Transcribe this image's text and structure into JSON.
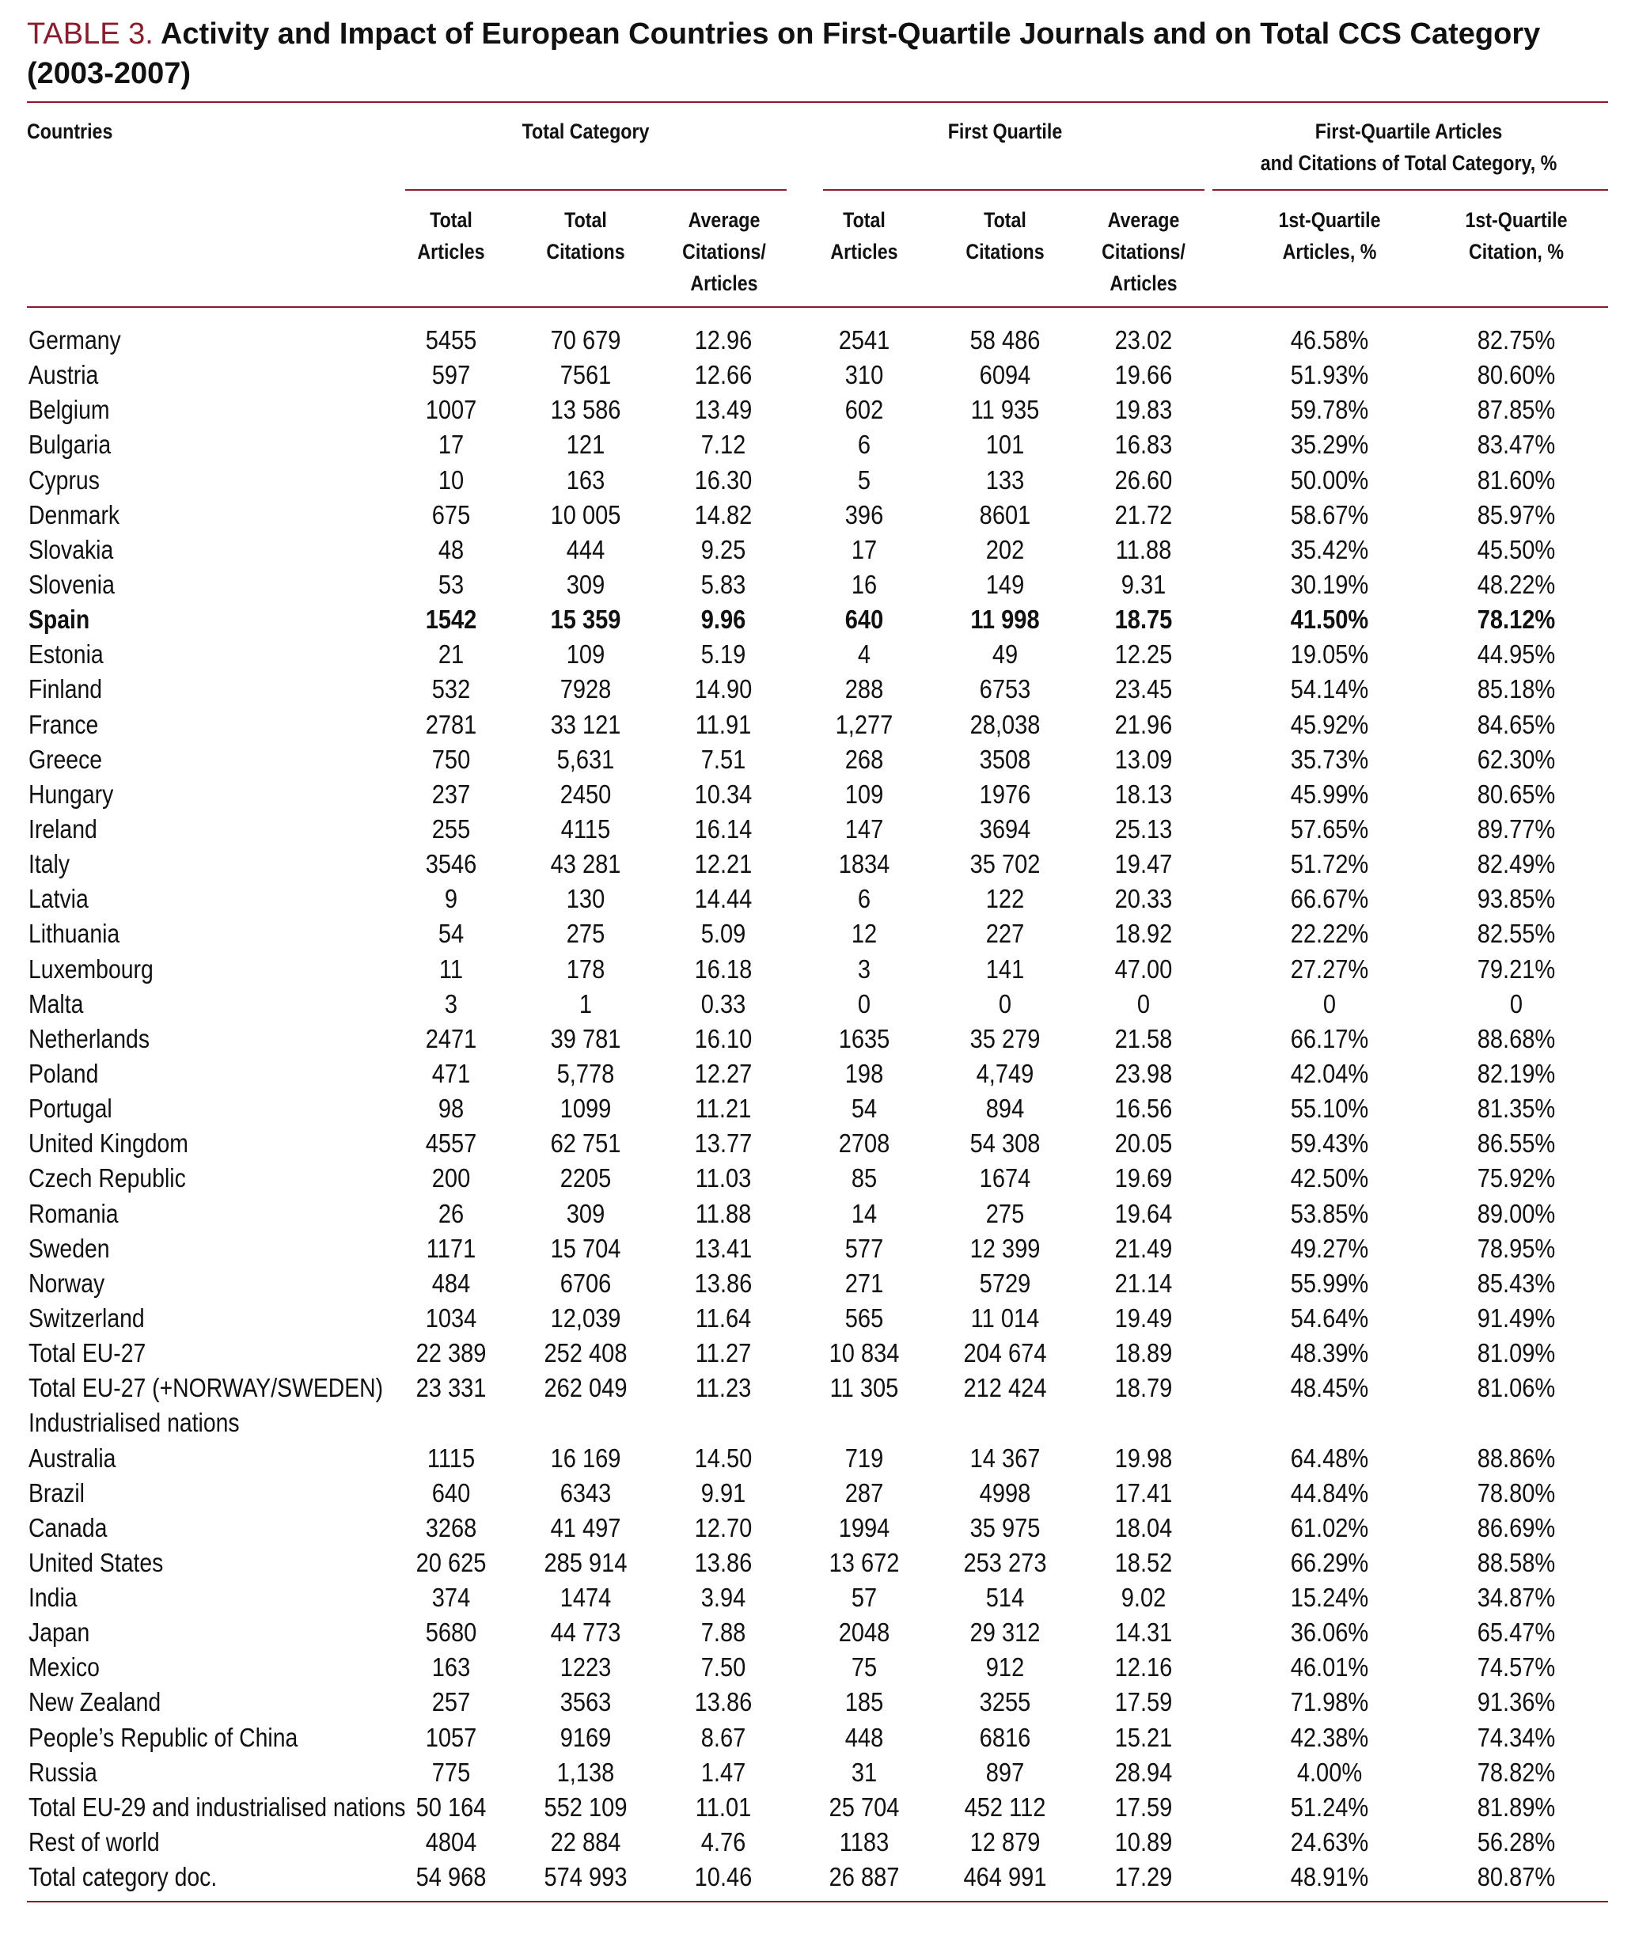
{
  "caption": {
    "label": "TABLE 3.",
    "title": "Activity and Impact of European Countries on First-Quartile Journals and on Total CCS Category (2003-2007)"
  },
  "header": {
    "countries": "Countries",
    "group_total": "Total Category",
    "group_first": "First Quartile",
    "group_pct_line1": "First-Quartile Articles",
    "group_pct_line2": "and Citations of Total Category, %",
    "columns": [
      [
        "Total",
        "Articles"
      ],
      [
        "Total",
        "Citations"
      ],
      [
        "Average",
        "Citations/",
        "Articles"
      ],
      [
        "Total",
        "Articles"
      ],
      [
        "Total",
        "Citations"
      ],
      [
        "Average",
        "Citations/",
        "Articles"
      ],
      [
        "1st-Quartile",
        "Articles, %"
      ],
      [
        "1st-Quartile",
        "Citation, %"
      ]
    ]
  },
  "rows": [
    {
      "name": "Germany",
      "v": [
        "5455",
        "70 679",
        "12.96",
        "2541",
        "58 486",
        "23.02",
        "46.58%",
        "82.75%"
      ]
    },
    {
      "name": "Austria",
      "v": [
        "597",
        "7561",
        "12.66",
        "310",
        "6094",
        "19.66",
        "51.93%",
        "80.60%"
      ]
    },
    {
      "name": "Belgium",
      "v": [
        "1007",
        "13 586",
        "13.49",
        "602",
        "11 935",
        "19.83",
        "59.78%",
        "87.85%"
      ]
    },
    {
      "name": "Bulgaria",
      "v": [
        "17",
        "121",
        "7.12",
        "6",
        "101",
        "16.83",
        "35.29%",
        "83.47%"
      ]
    },
    {
      "name": "Cyprus",
      "v": [
        "10",
        "163",
        "16.30",
        "5",
        "133",
        "26.60",
        "50.00%",
        "81.60%"
      ]
    },
    {
      "name": "Denmark",
      "v": [
        "675",
        "10 005",
        "14.82",
        "396",
        "8601",
        "21.72",
        "58.67%",
        "85.97%"
      ]
    },
    {
      "name": "Slovakia",
      "v": [
        "48",
        "444",
        "9.25",
        "17",
        "202",
        "11.88",
        "35.42%",
        "45.50%"
      ]
    },
    {
      "name": "Slovenia",
      "v": [
        "53",
        "309",
        "5.83",
        "16",
        "149",
        "9.31",
        "30.19%",
        "48.22%"
      ]
    },
    {
      "name": "Spain",
      "bold": true,
      "v": [
        "1542",
        "15 359",
        "9.96",
        "640",
        "11 998",
        "18.75",
        "41.50%",
        "78.12%"
      ]
    },
    {
      "name": "Estonia",
      "v": [
        "21",
        "109",
        "5.19",
        "4",
        "49",
        "12.25",
        "19.05%",
        "44.95%"
      ]
    },
    {
      "name": "Finland",
      "v": [
        "532",
        "7928",
        "14.90",
        "288",
        "6753",
        "23.45",
        "54.14%",
        "85.18%"
      ]
    },
    {
      "name": "France",
      "v": [
        "2781",
        "33 121",
        "11.91",
        "1,277",
        "28,038",
        "21.96",
        "45.92%",
        "84.65%"
      ]
    },
    {
      "name": "Greece",
      "v": [
        "750",
        "5,631",
        "7.51",
        "268",
        "3508",
        "13.09",
        "35.73%",
        "62.30%"
      ]
    },
    {
      "name": "Hungary",
      "v": [
        "237",
        "2450",
        "10.34",
        "109",
        "1976",
        "18.13",
        "45.99%",
        "80.65%"
      ]
    },
    {
      "name": "Ireland",
      "v": [
        "255",
        "4115",
        "16.14",
        "147",
        "3694",
        "25.13",
        "57.65%",
        "89.77%"
      ]
    },
    {
      "name": "Italy",
      "v": [
        "3546",
        "43 281",
        "12.21",
        "1834",
        "35 702",
        "19.47",
        "51.72%",
        "82.49%"
      ]
    },
    {
      "name": "Latvia",
      "v": [
        "9",
        "130",
        "14.44",
        "6",
        "122",
        "20.33",
        "66.67%",
        "93.85%"
      ]
    },
    {
      "name": "Lithuania",
      "v": [
        "54",
        "275",
        "5.09",
        "12",
        "227",
        "18.92",
        "22.22%",
        "82.55%"
      ]
    },
    {
      "name": "Luxembourg",
      "v": [
        "11",
        "178",
        "16.18",
        "3",
        "141",
        "47.00",
        "27.27%",
        "79.21%"
      ]
    },
    {
      "name": "Malta",
      "v": [
        "3",
        "1",
        "0.33",
        "0",
        "0",
        "0",
        "0",
        "0"
      ]
    },
    {
      "name": "Netherlands",
      "v": [
        "2471",
        "39 781",
        "16.10",
        "1635",
        "35 279",
        "21.58",
        "66.17%",
        "88.68%"
      ]
    },
    {
      "name": "Poland",
      "v": [
        "471",
        "5,778",
        "12.27",
        "198",
        "4,749",
        "23.98",
        "42.04%",
        "82.19%"
      ]
    },
    {
      "name": "Portugal",
      "v": [
        "98",
        "1099",
        "11.21",
        "54",
        "894",
        "16.56",
        "55.10%",
        "81.35%"
      ]
    },
    {
      "name": "United Kingdom",
      "v": [
        "4557",
        "62 751",
        "13.77",
        "2708",
        "54 308",
        "20.05",
        "59.43%",
        "86.55%"
      ]
    },
    {
      "name": "Czech Republic",
      "v": [
        "200",
        "2205",
        "11.03",
        "85",
        "1674",
        "19.69",
        "42.50%",
        "75.92%"
      ]
    },
    {
      "name": "Romania",
      "v": [
        "26",
        "309",
        "11.88",
        "14",
        "275",
        "19.64",
        "53.85%",
        "89.00%"
      ]
    },
    {
      "name": "Sweden",
      "v": [
        "1171",
        "15 704",
        "13.41",
        "577",
        "12 399",
        "21.49",
        "49.27%",
        "78.95%"
      ]
    },
    {
      "name": "Norway",
      "v": [
        "484",
        "6706",
        "13.86",
        "271",
        "5729",
        "21.14",
        "55.99%",
        "85.43%"
      ]
    },
    {
      "name": "Switzerland",
      "v": [
        "1034",
        "12,039",
        "11.64",
        "565",
        "11 014",
        "19.49",
        "54.64%",
        "91.49%"
      ]
    },
    {
      "name": "Total EU-27",
      "v": [
        "22 389",
        "252 408",
        "11.27",
        "10 834",
        "204 674",
        "18.89",
        "48.39%",
        "81.09%"
      ]
    },
    {
      "name": "Total EU-27 (+NORWAY/SWEDEN)",
      "v": [
        "23 331",
        "262 049",
        "11.23",
        "11 305",
        "212 424",
        "18.79",
        "48.45%",
        "81.06%"
      ]
    },
    {
      "name": "Industrialised nations",
      "v": [
        "",
        "",
        "",
        "",
        "",
        "",
        "",
        ""
      ]
    },
    {
      "name": "Australia",
      "v": [
        "1115",
        "16 169",
        "14.50",
        "719",
        "14 367",
        "19.98",
        "64.48%",
        "88.86%"
      ]
    },
    {
      "name": "Brazil",
      "v": [
        "640",
        "6343",
        "9.91",
        "287",
        "4998",
        "17.41",
        "44.84%",
        "78.80%"
      ]
    },
    {
      "name": "Canada",
      "v": [
        "3268",
        "41 497",
        "12.70",
        "1994",
        "35 975",
        "18.04",
        "61.02%",
        "86.69%"
      ]
    },
    {
      "name": "United States",
      "v": [
        "20 625",
        "285 914",
        "13.86",
        "13 672",
        "253 273",
        "18.52",
        "66.29%",
        "88.58%"
      ]
    },
    {
      "name": "India",
      "v": [
        "374",
        "1474",
        "3.94",
        "57",
        "514",
        "9.02",
        "15.24%",
        "34.87%"
      ]
    },
    {
      "name": "Japan",
      "v": [
        "5680",
        "44 773",
        "7.88",
        "2048",
        "29 312",
        "14.31",
        "36.06%",
        "65.47%"
      ]
    },
    {
      "name": "Mexico",
      "v": [
        "163",
        "1223",
        "7.50",
        "75",
        "912",
        "12.16",
        "46.01%",
        "74.57%"
      ]
    },
    {
      "name": "New Zealand",
      "v": [
        "257",
        "3563",
        "13.86",
        "185",
        "3255",
        "17.59",
        "71.98%",
        "91.36%"
      ]
    },
    {
      "name": "People’s Republic of China",
      "v": [
        "1057",
        "9169",
        "8.67",
        "448",
        "6816",
        "15.21",
        "42.38%",
        "74.34%"
      ]
    },
    {
      "name": "Russia",
      "v": [
        "775",
        "1,138",
        "1.47",
        "31",
        "897",
        "28.94",
        "4.00%",
        "78.82%"
      ]
    },
    {
      "name": "Total EU-29 and industrialised nations",
      "v": [
        "50 164",
        "552 109",
        "11.01",
        "25 704",
        "452 112",
        "17.59",
        "51.24%",
        "81.89%"
      ]
    },
    {
      "name": "Rest of world",
      "v": [
        "4804",
        "22 884",
        "4.76",
        "1183",
        "12 879",
        "10.89",
        "24.63%",
        "56.28%"
      ]
    },
    {
      "name": "Total category doc.",
      "v": [
        "54 968",
        "574 993",
        "10.46",
        "26 887",
        "464 991",
        "17.29",
        "48.91%",
        "80.87%"
      ]
    }
  ]
}
